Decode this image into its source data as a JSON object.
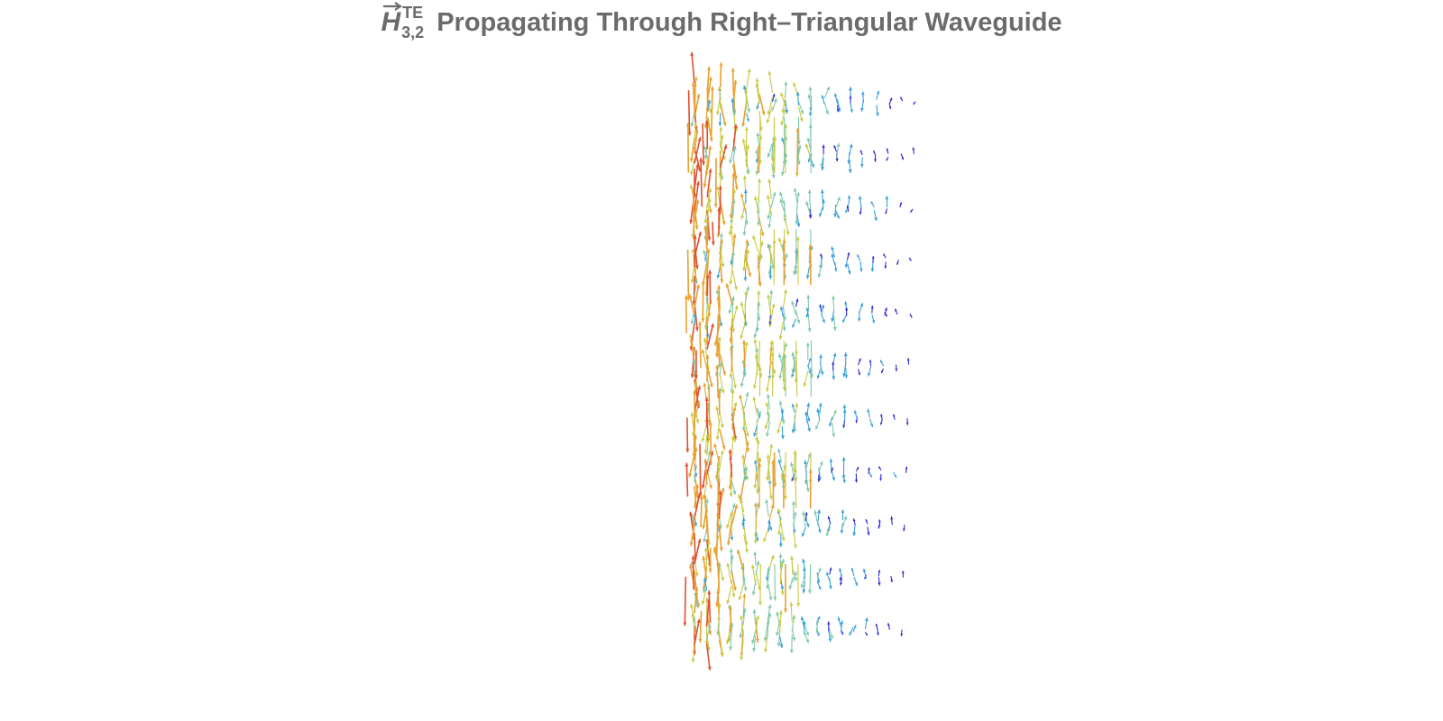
{
  "title": {
    "symbol": "H",
    "superscript": "TE",
    "subscript": "3,2",
    "text": "Propagating Through Right–Triangular Waveguide"
  },
  "field_plot": {
    "type": "3d-vector-field",
    "color_scale": [
      "#2b2bd6",
      "#3aa0d8",
      "#7fc8a8",
      "#c8c840",
      "#e8a030",
      "#e05030"
    ],
    "num_slices": 11
  }
}
